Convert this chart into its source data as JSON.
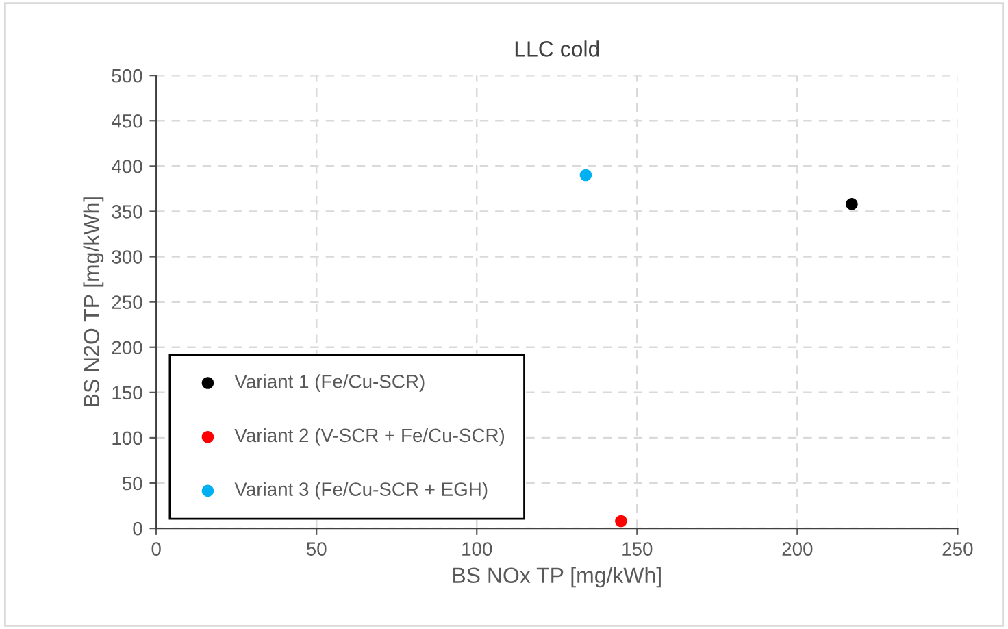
{
  "chart_data": {
    "type": "scatter",
    "title": "LLC cold",
    "xlabel": "BS NOx TP [mg/kWh]",
    "ylabel": "BS N2O TP [mg/kWh]",
    "xlim": [
      0,
      250
    ],
    "xticks": [
      0,
      50,
      100,
      150,
      200,
      250
    ],
    "ylim": [
      0,
      500
    ],
    "yticks": [
      0,
      50,
      100,
      150,
      200,
      250,
      300,
      350,
      400,
      450,
      500
    ],
    "grid": true,
    "legend": "bottom left",
    "marker": "circle",
    "series": [
      {
        "name": "Variant 1 (Fe/Cu-SCR)",
        "color": "#000000",
        "x": [
          217
        ],
        "values": [
          358
        ]
      },
      {
        "name": "Variant 2 (V-SCR + Fe/Cu-SCR)",
        "color": "#ff0000",
        "x": [
          145
        ],
        "values": [
          8
        ]
      },
      {
        "name": "Variant 3 (Fe/Cu-SCR + EGH)",
        "color": "#00b0f0",
        "x": [
          134
        ],
        "values": [
          390
        ]
      }
    ]
  }
}
